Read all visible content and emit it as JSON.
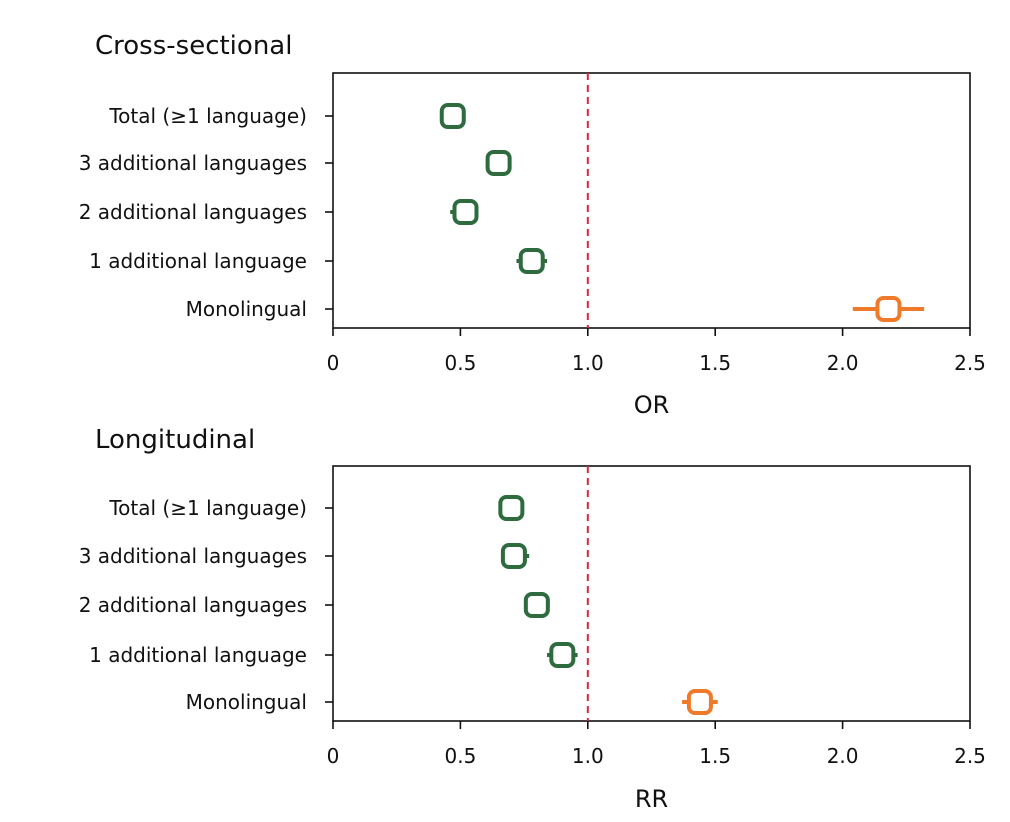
{
  "colors": {
    "green": "#2e6b3f",
    "orange": "#ef7a2a",
    "ref": "#d42a3a",
    "axis": "#111111"
  },
  "chart_data": [
    {
      "type": "forest",
      "title": "Cross-sectional",
      "xlabel": "OR",
      "xlim": [
        0,
        2.5
      ],
      "xticks": [
        0,
        0.5,
        1.0,
        1.5,
        2.0,
        2.5
      ],
      "xtick_labels": [
        "0",
        "0.5",
        "1.0",
        "1.5",
        "2.0",
        "2.5"
      ],
      "reference_line": 1.0,
      "categories": [
        "Total (≥1 language)",
        "3 additional languages",
        "2 additional languages",
        "1 additional language",
        "Monolingual"
      ],
      "estimates": [
        0.47,
        0.65,
        0.52,
        0.78,
        2.18
      ],
      "ci_low": [
        0.42,
        0.6,
        0.46,
        0.72,
        2.04
      ],
      "ci_high": [
        0.52,
        0.7,
        0.57,
        0.84,
        2.32
      ],
      "marker_colors": [
        "green",
        "green",
        "green",
        "green",
        "orange"
      ]
    },
    {
      "type": "forest",
      "title": "Longitudinal",
      "xlabel": "RR",
      "xlim": [
        0,
        2.5
      ],
      "xticks": [
        0,
        0.5,
        1.0,
        1.5,
        2.0,
        2.5
      ],
      "xtick_labels": [
        "0",
        "0.5",
        "1.0",
        "1.5",
        "2.0",
        "2.5"
      ],
      "reference_line": 1.0,
      "categories": [
        "Total (≥1 language)",
        "3 additional languages",
        "2 additional languages",
        "1 additional language",
        "Monolingual"
      ],
      "estimates": [
        0.7,
        0.71,
        0.8,
        0.9,
        1.44
      ],
      "ci_low": [
        0.65,
        0.66,
        0.75,
        0.84,
        1.37
      ],
      "ci_high": [
        0.75,
        0.77,
        0.85,
        0.96,
        1.51
      ],
      "marker_colors": [
        "green",
        "green",
        "green",
        "green",
        "orange"
      ]
    }
  ]
}
